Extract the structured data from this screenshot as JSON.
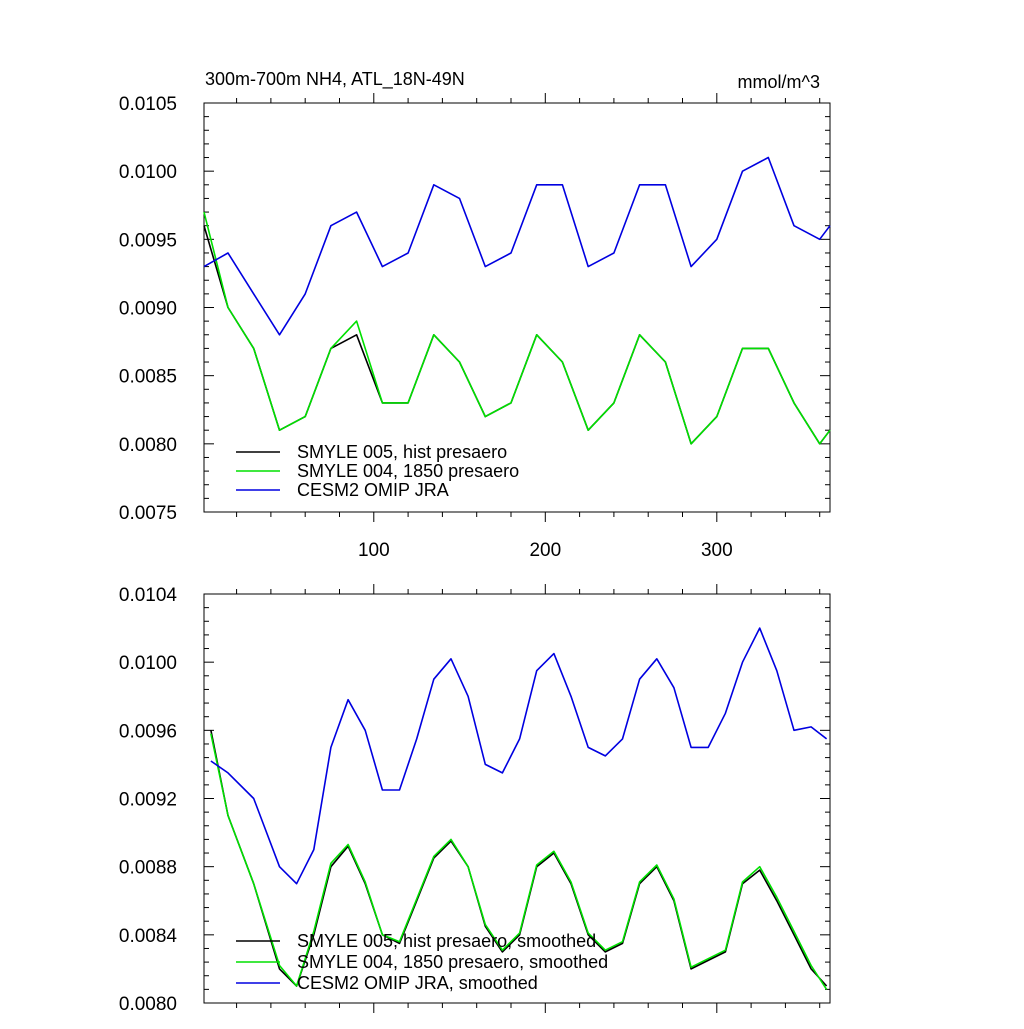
{
  "chart_data": [
    {
      "type": "line",
      "title": "300m-700m NH4, ATL_18N-49N",
      "units": "mmol/m^3",
      "xlabel": "",
      "ylabel": "",
      "xlim": [
        1,
        366
      ],
      "ylim": [
        0.0075,
        0.0105
      ],
      "x_ticks": [
        100,
        200,
        300
      ],
      "x_tick_labels": [
        "100",
        "200",
        "300"
      ],
      "y_ticks": [
        0.0075,
        0.008,
        0.0085,
        0.009,
        0.0095,
        0.01,
        0.0105
      ],
      "y_tick_labels": [
        "0.0075",
        "0.0080",
        "0.0085",
        "0.0090",
        "0.0095",
        "0.0100",
        "0.0105"
      ],
      "legend_position": "bottom-left",
      "series": [
        {
          "name": "SMYLE 005, hist presaero",
          "color": "#000000",
          "x": [
            1,
            15,
            30,
            45,
            60,
            75,
            90,
            105,
            120,
            135,
            150,
            165,
            180,
            195,
            210,
            225,
            240,
            255,
            270,
            285,
            300,
            315,
            330,
            345,
            360,
            366
          ],
          "values": [
            0.0096,
            0.009,
            0.0087,
            0.0081,
            0.0082,
            0.0087,
            0.0088,
            0.0083,
            0.0083,
            0.0088,
            0.0086,
            0.0082,
            0.0083,
            0.0088,
            0.0086,
            0.0081,
            0.0083,
            0.0088,
            0.0086,
            0.008,
            0.0082,
            0.0087,
            0.0087,
            0.0083,
            0.008,
            0.0081
          ]
        },
        {
          "name": "SMYLE 004, 1850 presaero",
          "color": "#00e000",
          "x": [
            1,
            15,
            30,
            45,
            60,
            75,
            90,
            105,
            120,
            135,
            150,
            165,
            180,
            195,
            210,
            225,
            240,
            255,
            270,
            285,
            300,
            315,
            330,
            345,
            360,
            366
          ],
          "values": [
            0.0097,
            0.009,
            0.0087,
            0.0081,
            0.0082,
            0.0087,
            0.0089,
            0.0083,
            0.0083,
            0.0088,
            0.0086,
            0.0082,
            0.0083,
            0.0088,
            0.0086,
            0.0081,
            0.0083,
            0.0088,
            0.0086,
            0.008,
            0.0082,
            0.0087,
            0.0087,
            0.0083,
            0.008,
            0.0081
          ]
        },
        {
          "name": "CESM2 OMIP JRA",
          "color": "#0000e0",
          "x": [
            1,
            15,
            30,
            45,
            60,
            75,
            90,
            105,
            120,
            135,
            150,
            165,
            180,
            195,
            210,
            225,
            240,
            255,
            270,
            285,
            300,
            315,
            330,
            345,
            360,
            366
          ],
          "values": [
            0.0093,
            0.0094,
            0.0091,
            0.0088,
            0.0091,
            0.0096,
            0.0097,
            0.0093,
            0.0094,
            0.0099,
            0.0098,
            0.0093,
            0.0094,
            0.0099,
            0.0099,
            0.0093,
            0.0094,
            0.0099,
            0.0099,
            0.0093,
            0.0095,
            0.01,
            0.0101,
            0.0096,
            0.0095,
            0.0096
          ]
        }
      ]
    },
    {
      "type": "line",
      "title": "",
      "xlabel": "",
      "ylabel": "",
      "xlim": [
        1,
        366
      ],
      "ylim": [
        0.008,
        0.0104
      ],
      "x_ticks": [
        100,
        200,
        300
      ],
      "x_tick_labels": [],
      "y_ticks": [
        0.008,
        0.0084,
        0.0088,
        0.0092,
        0.0096,
        0.01,
        0.0104
      ],
      "y_tick_labels": [
        "0.0080",
        "0.0084",
        "0.0088",
        "0.0092",
        "0.0096",
        "0.0100",
        "0.0104"
      ],
      "legend_position": "bottom-left",
      "series": [
        {
          "name": "SMYLE 005, hist presaero, smoothed",
          "color": "#000000",
          "x": [
            5,
            15,
            30,
            45,
            55,
            65,
            75,
            85,
            95,
            105,
            115,
            125,
            135,
            145,
            155,
            165,
            175,
            185,
            195,
            205,
            215,
            225,
            235,
            245,
            255,
            265,
            275,
            285,
            295,
            305,
            315,
            325,
            335,
            345,
            355,
            364
          ],
          "values": [
            0.0096,
            0.0091,
            0.0087,
            0.0082,
            0.0081,
            0.0084,
            0.0088,
            0.00892,
            0.0087,
            0.0084,
            0.00835,
            0.0086,
            0.00885,
            0.00895,
            0.0088,
            0.00845,
            0.0083,
            0.0084,
            0.0088,
            0.00888,
            0.0087,
            0.0084,
            0.0083,
            0.00835,
            0.0087,
            0.0088,
            0.0086,
            0.0082,
            0.00825,
            0.0083,
            0.0087,
            0.00878,
            0.0086,
            0.0084,
            0.0082,
            0.0081
          ]
        },
        {
          "name": "SMYLE 004, 1850 presaero, smoothed",
          "color": "#00e000",
          "x": [
            5,
            15,
            30,
            45,
            55,
            65,
            75,
            85,
            95,
            105,
            115,
            125,
            135,
            145,
            155,
            165,
            175,
            185,
            195,
            205,
            215,
            225,
            235,
            245,
            255,
            265,
            275,
            285,
            295,
            305,
            315,
            325,
            335,
            345,
            355,
            364
          ],
          "values": [
            0.00958,
            0.0091,
            0.0087,
            0.00822,
            0.0081,
            0.00842,
            0.00882,
            0.00893,
            0.00871,
            0.0084,
            0.00836,
            0.00861,
            0.00886,
            0.00896,
            0.0088,
            0.00846,
            0.00831,
            0.00841,
            0.00881,
            0.00889,
            0.00871,
            0.00841,
            0.00831,
            0.00836,
            0.00871,
            0.00881,
            0.00861,
            0.00821,
            0.00826,
            0.00831,
            0.00871,
            0.0088,
            0.00862,
            0.00842,
            0.00822,
            0.00808
          ]
        },
        {
          "name": "CESM2 OMIP JRA, smoothed",
          "color": "#0000e0",
          "x": [
            5,
            15,
            30,
            45,
            55,
            65,
            75,
            85,
            95,
            105,
            115,
            125,
            135,
            145,
            155,
            165,
            175,
            185,
            195,
            205,
            215,
            225,
            235,
            245,
            255,
            265,
            275,
            285,
            295,
            305,
            315,
            325,
            335,
            345,
            355,
            364
          ],
          "values": [
            0.00942,
            0.00935,
            0.0092,
            0.0088,
            0.0087,
            0.0089,
            0.0095,
            0.00978,
            0.0096,
            0.00925,
            0.00925,
            0.00955,
            0.0099,
            0.01002,
            0.0098,
            0.0094,
            0.00935,
            0.00955,
            0.00995,
            0.01005,
            0.0098,
            0.0095,
            0.00945,
            0.00955,
            0.0099,
            0.01002,
            0.00985,
            0.0095,
            0.0095,
            0.0097,
            0.01,
            0.0102,
            0.00995,
            0.0096,
            0.00962,
            0.00955
          ]
        }
      ]
    }
  ]
}
